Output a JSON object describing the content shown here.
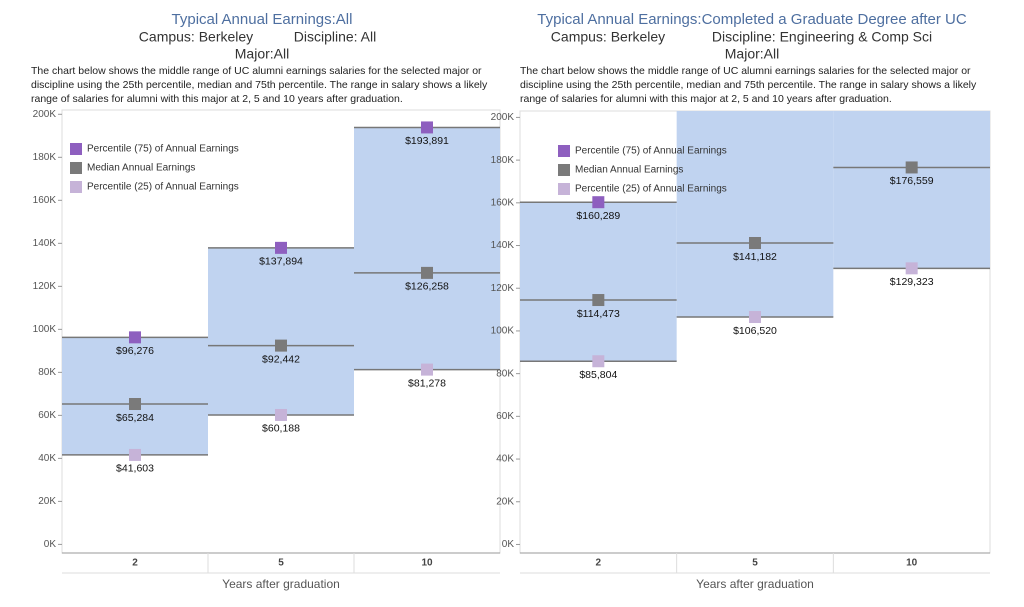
{
  "chart_data": [
    {
      "type": "band-step",
      "title": "Typical Annual Earnings:All",
      "campus": "Campus: Berkeley",
      "discipline": "Discipline: All",
      "major": "Major:All",
      "description": [
        "The chart below shows the middle range of UC alumni earnings salaries for the selected major or",
        "discipline using the 25th percentile, median and 75th percentile. The range in salary shows a likely",
        "range of salaries for alumni with this major at 2, 5 and 10 years after graduation."
      ],
      "x_label": "Years after graduation",
      "categories": [
        "2",
        "5",
        "10"
      ],
      "ylim": [
        -4000,
        202000
      ],
      "yticks": [
        {
          "value": 0,
          "label": "0K"
        },
        {
          "value": 20000,
          "label": "20K"
        },
        {
          "value": 40000,
          "label": "40K"
        },
        {
          "value": 60000,
          "label": "60K"
        },
        {
          "value": 80000,
          "label": "80K"
        },
        {
          "value": 100000,
          "label": "100K"
        },
        {
          "value": 120000,
          "label": "120K"
        },
        {
          "value": 140000,
          "label": "140K"
        },
        {
          "value": 160000,
          "label": "160K"
        },
        {
          "value": 180000,
          "label": "180K"
        },
        {
          "value": 200000,
          "label": "200K"
        }
      ],
      "band_color": "#c0d3f0",
      "series": [
        {
          "name": "Percentile (75) of Annual Earnings",
          "color": "#8e5fbf",
          "values": [
            96276,
            137894,
            193891
          ],
          "value_labels": [
            "$96,276",
            "$137,894",
            "$193,891"
          ]
        },
        {
          "name": "Median Annual Earnings",
          "color": "#7a7a7a",
          "values": [
            65284,
            92442,
            126258
          ],
          "value_labels": [
            "$65,284",
            "$92,442",
            "$126,258"
          ]
        },
        {
          "name": "Percentile (25) of Annual Earnings",
          "color": "#c6b3d8",
          "values": [
            41603,
            60188,
            81278
          ],
          "value_labels": [
            "$41,603",
            "$60,188",
            "$81,278"
          ]
        }
      ]
    },
    {
      "type": "band-step",
      "title": "Typical Annual Earnings:Completed a Graduate Degree after UC",
      "campus": "Campus: Berkeley",
      "discipline": "Discipline: Engineering & Comp Sci",
      "major": "Major:All",
      "description": [
        "The chart below shows the middle range of UC alumni earnings salaries for the selected major or",
        "discipline using the 25th percentile, median and 75th percentile. The range in salary shows a likely",
        "range of salaries for alumni with this major at 2, 5 and 10 years after graduation."
      ],
      "x_label": "Years after graduation",
      "categories": [
        "2",
        "5",
        "10"
      ],
      "ylim": [
        -4000,
        203000
      ],
      "yticks": [
        {
          "value": 0,
          "label": "0K"
        },
        {
          "value": 20000,
          "label": "20K"
        },
        {
          "value": 40000,
          "label": "40K"
        },
        {
          "value": 60000,
          "label": "60K"
        },
        {
          "value": 80000,
          "label": "80K"
        },
        {
          "value": 100000,
          "label": "100K"
        },
        {
          "value": 120000,
          "label": "120K"
        },
        {
          "value": 140000,
          "label": "140K"
        },
        {
          "value": 160000,
          "label": "160K"
        },
        {
          "value": 180000,
          "label": "180K"
        },
        {
          "value": 200000,
          "label": "200K"
        }
      ],
      "band_color": "#c0d3f0",
      "series": [
        {
          "name": "Percentile (75) of Annual Earnings",
          "color": "#8e5fbf",
          "values": [
            160289,
            null,
            null
          ],
          "value_labels": [
            "$160,289",
            null,
            null
          ]
        },
        {
          "name": "Median Annual Earnings",
          "color": "#7a7a7a",
          "values": [
            114473,
            141182,
            176559
          ],
          "value_labels": [
            "$114,473",
            "$141,182",
            "$176,559"
          ]
        },
        {
          "name": "Percentile (25) of Annual Earnings",
          "color": "#c6b3d8",
          "values": [
            85804,
            106520,
            129323
          ],
          "value_labels": [
            "$85,804",
            "$106,520",
            "$129,323"
          ]
        }
      ]
    }
  ]
}
